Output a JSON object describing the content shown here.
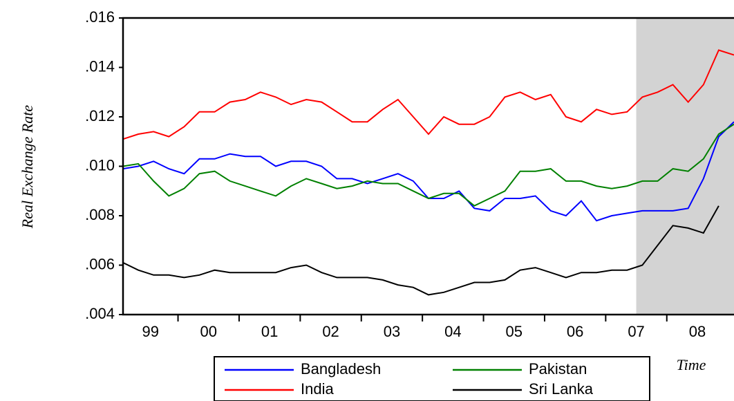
{
  "chart_data": {
    "type": "line",
    "y_label": "Real Exchange Rate",
    "x_label": "Time",
    "x": [
      1999.1,
      1999.35,
      1999.6,
      1999.85,
      2000.1,
      2000.35,
      2000.6,
      2000.85,
      2001.1,
      2001.35,
      2001.6,
      2001.85,
      2002.1,
      2002.35,
      2002.6,
      2002.85,
      2003.1,
      2003.35,
      2003.6,
      2003.85,
      2004.1,
      2004.35,
      2004.6,
      2004.85,
      2005.1,
      2005.35,
      2005.6,
      2005.85,
      2006.1,
      2006.35,
      2006.6,
      2006.85,
      2007.1,
      2007.35,
      2007.6,
      2007.85,
      2008.1,
      2008.35,
      2008.6,
      2008.85,
      2009.1
    ],
    "series": [
      {
        "name": "Bangladesh",
        "color": "#0000ff",
        "values": [
          0.0099,
          0.01,
          0.0102,
          0.0099,
          0.0097,
          0.0103,
          0.0103,
          0.0105,
          0.0104,
          0.0104,
          0.01,
          0.0102,
          0.0102,
          0.01,
          0.0095,
          0.0095,
          0.0093,
          0.0095,
          0.0097,
          0.0094,
          0.0087,
          0.0087,
          0.009,
          0.0083,
          0.0082,
          0.0087,
          0.0087,
          0.0088,
          0.0082,
          0.008,
          0.0086,
          0.0078,
          0.008,
          0.0081,
          0.0082,
          0.0082,
          0.0082,
          0.0083,
          0.0095,
          0.0112,
          0.0118
        ]
      },
      {
        "name": "India",
        "color": "#ff0000",
        "values": [
          0.0111,
          0.0113,
          0.0114,
          0.0112,
          0.0116,
          0.0122,
          0.0122,
          0.0126,
          0.0127,
          0.013,
          0.0128,
          0.0125,
          0.0127,
          0.0126,
          0.0122,
          0.0118,
          0.0118,
          0.0123,
          0.0127,
          0.012,
          0.0113,
          0.012,
          0.0117,
          0.0117,
          0.012,
          0.0128,
          0.013,
          0.0127,
          0.0129,
          0.012,
          0.0118,
          0.0123,
          0.0121,
          0.0122,
          0.0128,
          0.013,
          0.0133,
          0.0126,
          0.0133,
          0.0147,
          0.0145
        ]
      },
      {
        "name": "Pakistan",
        "color": "#008000",
        "values": [
          0.01,
          0.0101,
          0.0094,
          0.0088,
          0.0091,
          0.0097,
          0.0098,
          0.0094,
          0.0092,
          0.009,
          0.0088,
          0.0092,
          0.0095,
          0.0093,
          0.0091,
          0.0092,
          0.0094,
          0.0093,
          0.0093,
          0.009,
          0.0087,
          0.0089,
          0.0089,
          0.0084,
          0.0087,
          0.009,
          0.0098,
          0.0098,
          0.0099,
          0.0094,
          0.0094,
          0.0092,
          0.0091,
          0.0092,
          0.0094,
          0.0094,
          0.0099,
          0.0098,
          0.0103,
          0.0113,
          0.0117
        ]
      },
      {
        "name": "Sri Lanka",
        "color": "#000000",
        "values": [
          0.0061,
          0.0058,
          0.0056,
          0.0056,
          0.0055,
          0.0056,
          0.0058,
          0.0057,
          0.0057,
          0.0057,
          0.0057,
          0.0059,
          0.006,
          0.0057,
          0.0055,
          0.0055,
          0.0055,
          0.0054,
          0.0052,
          0.0051,
          0.0048,
          0.0049,
          0.0051,
          0.0053,
          0.0053,
          0.0054,
          0.0058,
          0.0059,
          0.0057,
          0.0055,
          0.0057,
          0.0057,
          0.0058,
          0.0058,
          0.006,
          0.0068,
          0.0076,
          0.0075,
          0.0073,
          0.0084,
          null
        ]
      }
    ],
    "xlim": [
      1999.1,
      2009.1
    ],
    "ylim": [
      0.004,
      0.016
    ],
    "xticks": [
      {
        "value": 1999,
        "label": "99"
      },
      {
        "value": 2000,
        "label": "00"
      },
      {
        "value": 2001,
        "label": "01"
      },
      {
        "value": 2002,
        "label": "02"
      },
      {
        "value": 2003,
        "label": "03"
      },
      {
        "value": 2004,
        "label": "04"
      },
      {
        "value": 2005,
        "label": "05"
      },
      {
        "value": 2006,
        "label": "06"
      },
      {
        "value": 2007,
        "label": "07"
      },
      {
        "value": 2008,
        "label": "08"
      }
    ],
    "yticks": [
      {
        "value": 0.004,
        "label": ".004"
      },
      {
        "value": 0.006,
        "label": ".006"
      },
      {
        "value": 0.008,
        "label": ".008"
      },
      {
        "value": 0.01,
        "label": ".010"
      },
      {
        "value": 0.012,
        "label": ".012"
      },
      {
        "value": 0.014,
        "label": ".014"
      },
      {
        "value": 0.016,
        "label": ".016"
      }
    ],
    "shaded_region": [
      2007.5,
      2009.1
    ],
    "shade_color": "#d3d3d3",
    "grid": false
  }
}
